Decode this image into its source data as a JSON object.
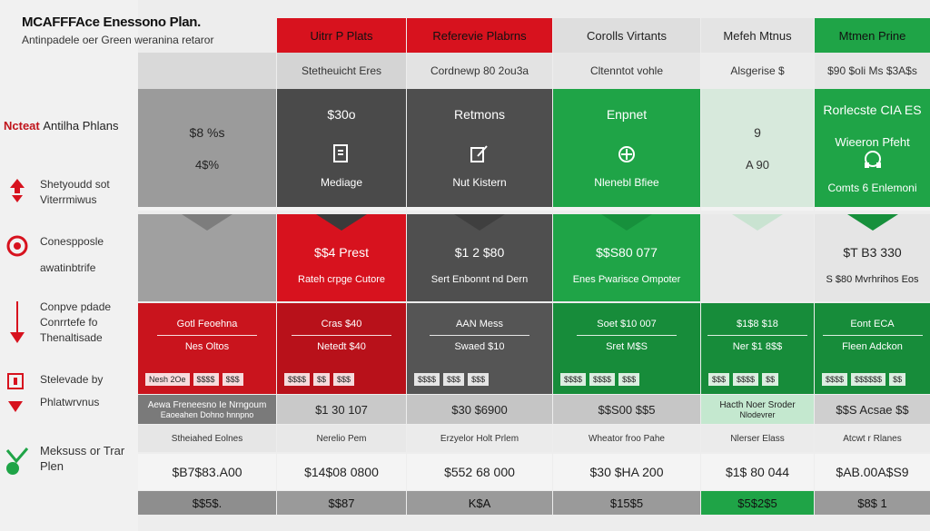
{
  "title": {
    "main": "MCAFFFAce Enessono Plan.",
    "subtitle": "Antinpadele oer Green weranina retaror"
  },
  "left": {
    "heading_red": "Ncteat",
    "heading_rest": "Antilha Phlans",
    "features": [
      {
        "line1": "Shetyoudd sot",
        "line2": "Viterrmiwus",
        "icon": "up-down-arrow-icon",
        "top": 0
      },
      {
        "line1": "Conespposle",
        "line2": "awatinbtrife",
        "icon": "target-icon",
        "top": 0
      },
      {
        "line1": "Conpve pdade",
        "line2": "Conrrtefe fo",
        "line3": "Thenaltisade",
        "icon": "arrow-down-icon",
        "top": 0
      },
      {
        "line1": "Stelevade by",
        "line2": "Phlatwrvnus",
        "icon": "shield-arrow-icon",
        "top": 0
      },
      {
        "line1": "Meksuss or Trar",
        "line2": "Plen",
        "icon": "check-circle-icon",
        "top": 0
      }
    ]
  },
  "columns": [
    {
      "header": "",
      "sub": "",
      "top_price": "$8 %s",
      "top_label": "4$%",
      "icon": "",
      "icon_label": "",
      "mid_price": "",
      "mid_label": "",
      "r1": "Gotl Feoehna",
      "r2": "Nes Oltos",
      "mini": [
        "Nesh 2Oe",
        "$$$$",
        "$$$"
      ],
      "r3": "Aewa Freneesno Ie Nrngoum",
      "r3b": "Eaoeahen Dohno hnnpno",
      "r4": "Stheiahed Eolnes",
      "r5": "$B7$83.A00",
      "r6": "$$5$."
    },
    {
      "header": "Uitrr P Plats",
      "sub": "Stetheuicht Eres",
      "top_price": "$30o",
      "top_label": "",
      "icon": "document-icon",
      "icon_label": "Mediage",
      "mid_price": "$$4 Prest",
      "mid_label": "Rateh crpge Cutore",
      "r1": "Cras $40",
      "r2": "Netedt $40",
      "mini": [
        "$$$$",
        "$$",
        "$$$"
      ],
      "r3": "$1 30 107",
      "r3b": "",
      "r4": "Nerelio Pem",
      "r5": "$14$08 0800",
      "r6": "$$87"
    },
    {
      "header": "Referevie Plabrns",
      "sub": "Cordnewp 80 2ou3a",
      "top_price": "Retmons",
      "top_label": "",
      "icon": "edit-icon",
      "icon_label": "Nut Kistern",
      "mid_price": "$1 2 $80",
      "mid_label": "Sert Enbonnt nd Dern",
      "r1": "AAN Mess",
      "r2": "Swaed $10",
      "mini": [
        "$$$$",
        "$$$",
        "$$$"
      ],
      "r3": "$30 $6900",
      "r3b": "",
      "r4": "Erzyelor Holt Prlem",
      "r5": "$552 68 000",
      "r6": "K$A"
    },
    {
      "header": "Corolls Virtants",
      "sub": "Cltenntot vohle",
      "top_price": "Enpnet",
      "top_label": "",
      "icon": "refresh-icon",
      "icon_label": "Nlenebl Bfiee",
      "mid_price": "$$S80 077",
      "mid_label": "Enes Pwarisce Ompoter",
      "r1": "Soet $10 007",
      "r2": "Sret M$S",
      "mini": [
        "$$$$",
        "$$$$",
        "$$$"
      ],
      "r3": "$$S00 $$5",
      "r3b": "",
      "r4": "Wheator froo Pahe",
      "r5": "$30 $HA 200",
      "r6": "$15$5"
    },
    {
      "header": "Mefeh Mtnus",
      "sub": "Alsgerise $",
      "top_price": "9",
      "top_label": "A 90",
      "icon": "",
      "icon_label": "",
      "mid_price": "",
      "mid_label": "",
      "r1": "$1$8 $18",
      "r2": "Ner $1 8$$",
      "mini": [
        "$$$",
        "$$$$",
        "$$"
      ],
      "r3": "Hacth Noer Sroder",
      "r3b": "Nlodevrer",
      "r4": "Nlerser Elass",
      "r5": "$1$ 80 044",
      "r6": "$5$2$5"
    },
    {
      "header": "Mtmen Prine",
      "sub": "$90 $oli Ms $3A$s",
      "top_price": "Rorlecste CIA ES",
      "top_label": "Wieeron Pfeht",
      "icon": "headset-icon",
      "icon_label": "Comts 6 Enlemoni",
      "mid_price": "$T B3 330",
      "mid_label": "S $80 Mvrhrihos Eos",
      "r1": "Eont ECA",
      "r2": "Fleen Adckon",
      "mini": [
        "$$$$",
        "$$$$$$",
        "$$"
      ],
      "r3": "$$S Acsae $$",
      "r3b": "",
      "r4": "Atcwt r Rlanes",
      "r5": "$AB.00A$S9",
      "r6": "$8$ 1"
    }
  ],
  "colors": {
    "red": "#d7121e",
    "green": "#1fa447",
    "dark": "#4d4d4d",
    "grey": "#9a9a9a"
  }
}
